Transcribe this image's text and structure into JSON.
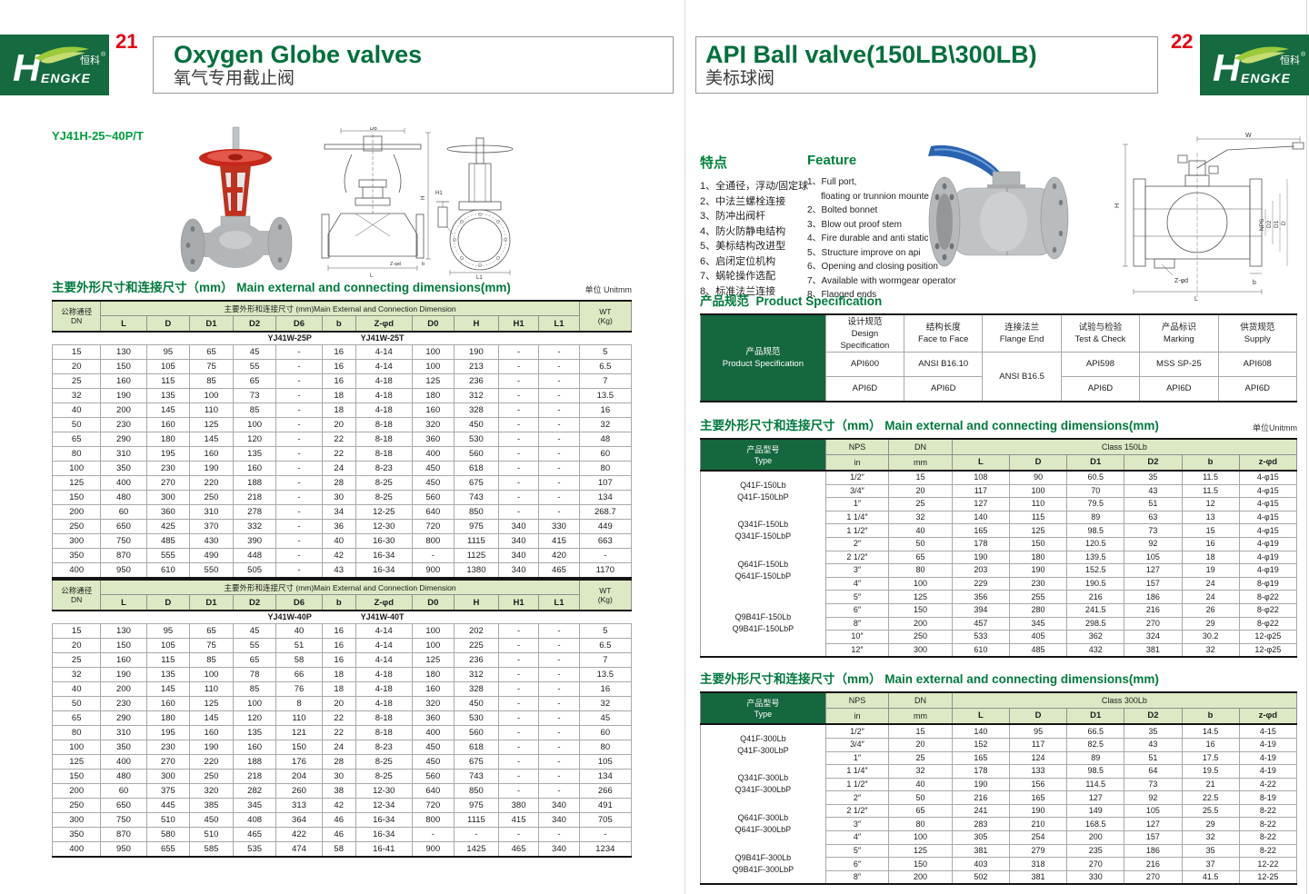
{
  "logo": {
    "zh": "恒科",
    "reg": "®",
    "h": "H",
    "rest": "ENGKE"
  },
  "page_left": {
    "page_number": "21",
    "title_en": "Oxygen Globe valves",
    "title_zh": "氧气专用截止阀",
    "model": "YJ41H-25~40P/T",
    "table_title_zh": "主要外形尺寸和连接尺寸（mm）",
    "table_title_en": "Main external and connecting dimensions(mm)",
    "unit_label": "单位 Unitmm",
    "tables": [
      {
        "dn_header_zh": "公称通径",
        "dn_header_en": "DN",
        "dim_header": "主要外形和连接尺寸 (mm)Main External and Connection Dimension",
        "wt_header": "WT",
        "wt_unit": "(Kg)",
        "columns": [
          "L",
          "D",
          "D1",
          "D2",
          "D6",
          "b",
          "Z-φd",
          "D0",
          "H",
          "H1",
          "L1"
        ],
        "models": [
          "YJ41W-25P",
          "YJ41W-25T"
        ],
        "rows": [
          [
            "15",
            "130",
            "95",
            "65",
            "45",
            "-",
            "16",
            "4-14",
            "100",
            "190",
            "-",
            "-",
            "5"
          ],
          [
            "20",
            "150",
            "105",
            "75",
            "55",
            "-",
            "16",
            "4-14",
            "100",
            "213",
            "-",
            "-",
            "6.5"
          ],
          [
            "25",
            "160",
            "115",
            "85",
            "65",
            "-",
            "16",
            "4-18",
            "125",
            "236",
            "-",
            "-",
            "7"
          ],
          [
            "32",
            "190",
            "135",
            "100",
            "73",
            "-",
            "18",
            "4-18",
            "180",
            "312",
            "-",
            "-",
            "13.5"
          ],
          [
            "40",
            "200",
            "145",
            "110",
            "85",
            "-",
            "18",
            "4-18",
            "160",
            "328",
            "-",
            "-",
            "16"
          ],
          [
            "50",
            "230",
            "160",
            "125",
            "100",
            "-",
            "20",
            "8-18",
            "320",
            "450",
            "-",
            "-",
            "32"
          ],
          [
            "65",
            "290",
            "180",
            "145",
            "120",
            "-",
            "22",
            "8-18",
            "360",
            "530",
            "-",
            "-",
            "48"
          ],
          [
            "80",
            "310",
            "195",
            "160",
            "135",
            "-",
            "22",
            "8-18",
            "400",
            "560",
            "-",
            "-",
            "60"
          ],
          [
            "100",
            "350",
            "230",
            "190",
            "160",
            "-",
            "24",
            "8-23",
            "450",
            "618",
            "-",
            "-",
            "80"
          ],
          [
            "125",
            "400",
            "270",
            "220",
            "188",
            "-",
            "28",
            "8-25",
            "450",
            "675",
            "-",
            "-",
            "107"
          ],
          [
            "150",
            "480",
            "300",
            "250",
            "218",
            "-",
            "30",
            "8-25",
            "560",
            "743",
            "-",
            "-",
            "134"
          ],
          [
            "200",
            "60",
            "360",
            "310",
            "278",
            "-",
            "34",
            "12-25",
            "640",
            "850",
            "-",
            "-",
            "268.7"
          ],
          [
            "250",
            "650",
            "425",
            "370",
            "332",
            "-",
            "36",
            "12-30",
            "720",
            "975",
            "340",
            "330",
            "449"
          ],
          [
            "300",
            "750",
            "485",
            "430",
            "390",
            "-",
            "40",
            "16-30",
            "800",
            "1115",
            "340",
            "415",
            "663"
          ],
          [
            "350",
            "870",
            "555",
            "490",
            "448",
            "-",
            "42",
            "16-34",
            "-",
            "1125",
            "340",
            "420",
            "-"
          ],
          [
            "400",
            "950",
            "610",
            "550",
            "505",
            "-",
            "43",
            "16-34",
            "900",
            "1380",
            "340",
            "465",
            "1170"
          ]
        ]
      },
      {
        "dn_header_zh": "公称通径",
        "dn_header_en": "DN",
        "dim_header": "主要外形和连接尺寸 (mm)Main External and Connection Dimension",
        "wt_header": "WT",
        "wt_unit": "(Kg)",
        "columns": [
          "L",
          "D",
          "D1",
          "D2",
          "D6",
          "b",
          "Z-φd",
          "D0",
          "H",
          "H1",
          "L1"
        ],
        "models": [
          "YJ41W-40P",
          "YJ41W-40T"
        ],
        "rows": [
          [
            "15",
            "130",
            "95",
            "65",
            "45",
            "40",
            "16",
            "4-14",
            "100",
            "202",
            "-",
            "-",
            "5"
          ],
          [
            "20",
            "150",
            "105",
            "75",
            "55",
            "51",
            "16",
            "4-14",
            "100",
            "225",
            "-",
            "-",
            "6.5"
          ],
          [
            "25",
            "160",
            "115",
            "85",
            "65",
            "58",
            "16",
            "4-14",
            "125",
            "236",
            "-",
            "-",
            "7"
          ],
          [
            "32",
            "190",
            "135",
            "100",
            "78",
            "66",
            "18",
            "4-18",
            "180",
            "312",
            "-",
            "-",
            "13.5"
          ],
          [
            "40",
            "200",
            "145",
            "110",
            "85",
            "76",
            "18",
            "4-18",
            "160",
            "328",
            "-",
            "-",
            "16"
          ],
          [
            "50",
            "230",
            "160",
            "125",
            "100",
            "8",
            "20",
            "4-18",
            "320",
            "450",
            "-",
            "-",
            "32"
          ],
          [
            "65",
            "290",
            "180",
            "145",
            "120",
            "110",
            "22",
            "8-18",
            "360",
            "530",
            "-",
            "-",
            "45"
          ],
          [
            "80",
            "310",
            "195",
            "160",
            "135",
            "121",
            "22",
            "8-18",
            "400",
            "560",
            "-",
            "-",
            "60"
          ],
          [
            "100",
            "350",
            "230",
            "190",
            "160",
            "150",
            "24",
            "8-23",
            "450",
            "618",
            "-",
            "-",
            "80"
          ],
          [
            "125",
            "400",
            "270",
            "220",
            "188",
            "176",
            "28",
            "8-25",
            "450",
            "675",
            "-",
            "-",
            "105"
          ],
          [
            "150",
            "480",
            "300",
            "250",
            "218",
            "204",
            "30",
            "8-25",
            "560",
            "743",
            "-",
            "-",
            "134"
          ],
          [
            "200",
            "60",
            "375",
            "320",
            "282",
            "260",
            "38",
            "12-30",
            "640",
            "850",
            "-",
            "-",
            "266"
          ],
          [
            "250",
            "650",
            "445",
            "385",
            "345",
            "313",
            "42",
            "12-34",
            "720",
            "975",
            "380",
            "340",
            "491"
          ],
          [
            "300",
            "750",
            "510",
            "450",
            "408",
            "364",
            "46",
            "16-34",
            "800",
            "1115",
            "415",
            "340",
            "705"
          ],
          [
            "350",
            "870",
            "580",
            "510",
            "465",
            "422",
            "46",
            "16-34",
            "-",
            "-",
            "-",
            "-",
            "-"
          ],
          [
            "400",
            "950",
            "655",
            "585",
            "535",
            "474",
            "58",
            "16-41",
            "900",
            "1425",
            "465",
            "340",
            "1234"
          ]
        ]
      }
    ]
  },
  "page_right": {
    "page_number": "22",
    "title_en": "API Ball valve(150LB\\300LB)",
    "title_zh": "美标球阀",
    "features_zh": {
      "heading": "特点",
      "items": [
        "1、全通径，浮动/固定球",
        "2、中法兰螺栓连接",
        "3、防冲出阀杆",
        "4、防火防静电结构",
        "5、美标结构改进型",
        "6、启闭定位机构",
        "7、蜗轮操作选配",
        "8、标准法兰连接"
      ]
    },
    "features_en": {
      "heading": "Feature",
      "items": [
        "1、Full port,",
        "floating or trunnion mounte type",
        "2、Bolted bonnet",
        "3、Blow out proof stem",
        "4、Fire durable and anti static safety",
        "5、Structure improve on api",
        "6、Opening and closing position",
        "7、Available with wormgear operator",
        "8、Flanged ends"
      ]
    },
    "spec": {
      "title_zh": "产品规范",
      "title_en": "Product Specification",
      "row_header_zh": "产品规范",
      "row_header_en": "Product Specification",
      "columns": [
        {
          "zh": "设计规范",
          "en": "Design Specification"
        },
        {
          "zh": "结构长度",
          "en": "Face to Face"
        },
        {
          "zh": "连接法兰",
          "en": "Flange End"
        },
        {
          "zh": "试验与检验",
          "en": "Test & Check"
        },
        {
          "zh": "产品标识",
          "en": "Marking"
        },
        {
          "zh": "供货规范",
          "en": "Supply"
        }
      ],
      "row1": [
        "API600",
        "ANSI B16.10",
        "ANSI B16.5",
        "API598",
        "MSS SP-25",
        "API608"
      ],
      "row2": [
        "API6D",
        "API6D",
        "API6D",
        "API6D",
        "API6D"
      ]
    },
    "dim_tables": [
      {
        "title_zh": "主要外形尺寸和连接尺寸（mm）",
        "title_en": "Main external and connecting dimensions(mm)",
        "unit_label": "单位Unitmm",
        "type_header_zh": "产品型号",
        "type_header_en": "Type",
        "nps_label": "NPS",
        "dn_label": "DN",
        "in_label": "in",
        "mm_label": "mm",
        "class_label": "Class 150Lb",
        "columns": [
          "L",
          "D",
          "D1",
          "D2",
          "b",
          "z-φd"
        ],
        "groups": [
          {
            "type": [
              "Q41F-150Lb",
              "Q41F-150LbP"
            ],
            "rows": [
              [
                "1/2″",
                "15",
                "108",
                "90",
                "60.5",
                "35",
                "11.5",
                "4-φ15"
              ],
              [
                "3/4″",
                "20",
                "117",
                "100",
                "70",
                "43",
                "11.5",
                "4-φ15"
              ],
              [
                "1″",
                "25",
                "127",
                "110",
                "79.5",
                "51",
                "12",
                "4-φ15"
              ]
            ]
          },
          {
            "type": [
              "Q341F-150Lb",
              "Q341F-150LbP"
            ],
            "rows": [
              [
                "1 1/4″",
                "32",
                "140",
                "115",
                "89",
                "63",
                "13",
                "4-φ15"
              ],
              [
                "1 1/2″",
                "40",
                "165",
                "125",
                "98.5",
                "73",
                "15",
                "4-φ15"
              ],
              [
                "2″",
                "50",
                "178",
                "150",
                "120.5",
                "92",
                "16",
                "4-φ19"
              ]
            ]
          },
          {
            "type": [
              "Q641F-150Lb",
              "Q641F-150LbP"
            ],
            "rows": [
              [
                "2 1/2″",
                "65",
                "190",
                "180",
                "139.5",
                "105",
                "18",
                "4-φ19"
              ],
              [
                "3″",
                "80",
                "203",
                "190",
                "152.5",
                "127",
                "19",
                "4-φ19"
              ],
              [
                "4″",
                "100",
                "229",
                "230",
                "190.5",
                "157",
                "24",
                "8-φ19"
              ]
            ]
          },
          {
            "type": [
              "Q9B41F-150Lb",
              "Q9B41F-150LbP"
            ],
            "rows": [
              [
                "5″",
                "125",
                "356",
                "255",
                "216",
                "186",
                "24",
                "8-φ22"
              ],
              [
                "6″",
                "150",
                "394",
                "280",
                "241.5",
                "216",
                "26",
                "8-φ22"
              ],
              [
                "8″",
                "200",
                "457",
                "345",
                "298.5",
                "270",
                "29",
                "8-φ22"
              ],
              [
                "10″",
                "250",
                "533",
                "405",
                "362",
                "324",
                "30.2",
                "12-φ25"
              ],
              [
                "12″",
                "300",
                "610",
                "485",
                "432",
                "381",
                "32",
                "12-φ25"
              ]
            ]
          }
        ]
      },
      {
        "title_zh": "主要外形尺寸和连接尺寸（mm）",
        "title_en": "Main external and connecting dimensions(mm)",
        "unit_label": "",
        "type_header_zh": "产品型号",
        "type_header_en": "Type",
        "nps_label": "NPS",
        "dn_label": "DN",
        "in_label": "in",
        "mm_label": "mm",
        "class_label": "Class 300Lb",
        "columns": [
          "L",
          "D",
          "D1",
          "D2",
          "b",
          "z-φd"
        ],
        "groups": [
          {
            "type": [
              "Q41F-300Lb",
              "Q41F-300LbP"
            ],
            "rows": [
              [
                "1/2″",
                "15",
                "140",
                "95",
                "66.5",
                "35",
                "14.5",
                "4-15"
              ],
              [
                "3/4″",
                "20",
                "152",
                "117",
                "82.5",
                "43",
                "16",
                "4-19"
              ],
              [
                "1″",
                "25",
                "165",
                "124",
                "89",
                "51",
                "17.5",
                "4-19"
              ]
            ]
          },
          {
            "type": [
              "Q341F-300Lb",
              "Q341F-300LbP"
            ],
            "rows": [
              [
                "1 1/4″",
                "32",
                "178",
                "133",
                "98.5",
                "64",
                "19.5",
                "4-19"
              ],
              [
                "1 1/2″",
                "40",
                "190",
                "156",
                "114.5",
                "73",
                "21",
                "4-22"
              ],
              [
                "2″",
                "50",
                "216",
                "165",
                "127",
                "92",
                "22.5",
                "8-19"
              ]
            ]
          },
          {
            "type": [
              "Q641F-300Lb",
              "Q641F-300LbP"
            ],
            "rows": [
              [
                "2 1/2″",
                "65",
                "241",
                "190",
                "149",
                "105",
                "25.5",
                "8-22"
              ],
              [
                "3″",
                "80",
                "283",
                "210",
                "168.5",
                "127",
                "29",
                "8-22"
              ],
              [
                "4″",
                "100",
                "305",
                "254",
                "200",
                "157",
                "32",
                "8-22"
              ]
            ]
          },
          {
            "type": [
              "Q9B41F-300Lb",
              "Q9B41F-300LbP"
            ],
            "rows": [
              [
                "5″",
                "125",
                "381",
                "279",
                "235",
                "186",
                "35",
                "8-22"
              ],
              [
                "6″",
                "150",
                "403",
                "318",
                "270",
                "216",
                "37",
                "12-22"
              ],
              [
                "8″",
                "200",
                "502",
                "381",
                "330",
                "270",
                "41.5",
                "12-25"
              ]
            ]
          }
        ]
      }
    ]
  },
  "drawings": {
    "globe_a_labels": [
      "D6",
      "H",
      "L",
      "Z-φd",
      "b"
    ],
    "globe_b_labels": [
      "H1",
      "L1"
    ],
    "ball_labels": [
      "W",
      "H",
      "NPS",
      "D2",
      "D1",
      "D",
      "Z-φd",
      "b",
      "L"
    ]
  }
}
